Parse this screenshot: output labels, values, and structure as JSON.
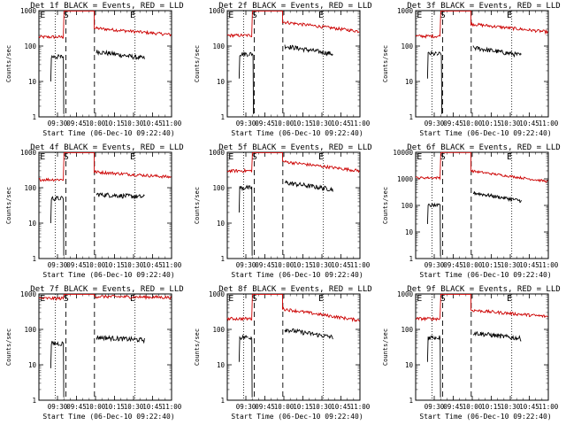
{
  "figure": {
    "description_colors": {
      "events": "#000000",
      "lld": "#cc0000"
    },
    "xlabel": "Start Time (06-Dec-10 09:22:40)",
    "ylabel": "Counts/sec"
  },
  "chart_data": [
    {
      "type": "line",
      "title": "Det 1f BLACK = Events, RED = LLD",
      "xlabel": "Start Time (06-Dec-10 09:22:40)",
      "ylabel": "Counts/sec",
      "y_scale": "log",
      "ylim": [
        1,
        1000
      ],
      "x_ticks": [
        "09:30",
        "09:45",
        "10:00",
        "10:15",
        "10:30",
        "10:45",
        "11:00"
      ],
      "x_range_minutes": [
        -7.33,
        97.33
      ],
      "markers": [
        "E",
        "S",
        "E"
      ],
      "event_lines": {
        "dotted": [
          5.5,
          68.5
        ],
        "dashed": [
          14.0,
          36.5
        ]
      },
      "series": [
        {
          "name": "LLD",
          "color": "#cc0000",
          "level_pre": 180,
          "level_flare": 1000,
          "level_post": 320,
          "post_end": 210
        },
        {
          "name": "Events",
          "color": "#000000",
          "level_pre": 50,
          "level_post": 70,
          "post_end": 45,
          "gap_end": 12
        }
      ]
    },
    {
      "type": "line",
      "title": "Det 2f BLACK = Events, RED = LLD",
      "xlabel": "Start Time (06-Dec-10 09:22:40)",
      "ylabel": "Counts/sec",
      "y_scale": "log",
      "ylim": [
        1,
        1000
      ],
      "x_ticks": [
        "09:30",
        "09:45",
        "10:00",
        "10:15",
        "10:30",
        "10:45",
        "11:00"
      ],
      "x_range_minutes": [
        -7.33,
        97.33
      ],
      "markers": [
        "E",
        "S",
        "E"
      ],
      "event_lines": {
        "dotted": [
          5.5,
          68.5
        ],
        "dashed": [
          14.0,
          36.5
        ]
      },
      "series": [
        {
          "name": "LLD",
          "color": "#cc0000",
          "level_pre": 200,
          "level_flare": 1000,
          "level_post": 480,
          "post_end": 260
        },
        {
          "name": "Events",
          "color": "#000000",
          "level_pre": 60,
          "level_post": 100,
          "post_end": 60,
          "gap_end": 13
        }
      ]
    },
    {
      "type": "line",
      "title": "Det 3f BLACK = Events, RED = LLD",
      "xlabel": "Start Time (06-Dec-10 09:22:40)",
      "ylabel": "Counts/sec",
      "y_scale": "log",
      "ylim": [
        1,
        1000
      ],
      "x_ticks": [
        "09:30",
        "09:45",
        "10:00",
        "10:15",
        "10:30",
        "10:45",
        "11:00"
      ],
      "x_range_minutes": [
        -7.33,
        97.33
      ],
      "markers": [
        "E",
        "S",
        "E"
      ],
      "event_lines": {
        "dotted": [
          5.5,
          68.5
        ],
        "dashed": [
          14.0,
          36.5
        ]
      },
      "series": [
        {
          "name": "LLD",
          "color": "#cc0000",
          "level_pre": 190,
          "level_flare": 1000,
          "level_post": 420,
          "post_end": 250
        },
        {
          "name": "Events",
          "color": "#000000",
          "level_pre": 60,
          "level_post": 90,
          "post_end": 55,
          "gap_end": 13
        }
      ]
    },
    {
      "type": "line",
      "title": "Det 4f BLACK = Events, RED = LLD",
      "xlabel": "Start Time (06-Dec-10 09:22:40)",
      "ylabel": "Counts/sec",
      "y_scale": "log",
      "ylim": [
        1,
        1000
      ],
      "x_ticks": [
        "09:30",
        "09:45",
        "10:00",
        "10:15",
        "10:30",
        "10:45",
        "11:00"
      ],
      "x_range_minutes": [
        -7.33,
        97.33
      ],
      "markers": [
        "E",
        "S",
        "E"
      ],
      "event_lines": {
        "dotted": [
          5.5,
          68.5
        ],
        "dashed": [
          14.0,
          36.5
        ]
      },
      "series": [
        {
          "name": "LLD",
          "color": "#cc0000",
          "level_pre": 170,
          "level_flare": 1000,
          "level_post": 280,
          "post_end": 200
        },
        {
          "name": "Events",
          "color": "#000000",
          "level_pre": 50,
          "level_post": 65,
          "post_end": 55,
          "gap_end": 12
        }
      ]
    },
    {
      "type": "line",
      "title": "Det 5f BLACK = Events, RED = LLD",
      "xlabel": "Start Time (06-Dec-10 09:22:40)",
      "ylabel": "Counts/sec",
      "y_scale": "log",
      "ylim": [
        1,
        1000
      ],
      "x_ticks": [
        "09:30",
        "09:45",
        "10:00",
        "10:15",
        "10:30",
        "10:45",
        "11:00"
      ],
      "x_range_minutes": [
        -7.33,
        97.33
      ],
      "markers": [
        "E",
        "S",
        "E"
      ],
      "event_lines": {
        "dotted": [
          5.5,
          68.5
        ],
        "dashed": [
          14.0,
          36.5
        ]
      },
      "series": [
        {
          "name": "LLD",
          "color": "#cc0000",
          "level_pre": 300,
          "level_flare": 1000,
          "level_post": 550,
          "post_end": 300
        },
        {
          "name": "Events",
          "color": "#000000",
          "level_pre": 100,
          "level_post": 140,
          "post_end": 90,
          "gap_end": 12
        }
      ]
    },
    {
      "type": "line",
      "title": "Det 6f BLACK = Events, RED = LLD",
      "xlabel": "Start Time (06-Dec-10 09:22:40)",
      "ylabel": "Counts/sec",
      "y_scale": "log",
      "ylim": [
        1,
        10000
      ],
      "x_ticks": [
        "09:30",
        "09:45",
        "10:00",
        "10:15",
        "10:30",
        "10:45",
        "11:00"
      ],
      "x_range_minutes": [
        -7.33,
        97.33
      ],
      "markers": [
        "E",
        "S",
        "E"
      ],
      "event_lines": {
        "dotted": [
          5.5,
          68.5
        ],
        "dashed": [
          14.0,
          36.5
        ]
      },
      "series": [
        {
          "name": "LLD",
          "color": "#cc0000",
          "level_pre": 1100,
          "level_flare": 10000,
          "level_post": 2000,
          "post_end": 800
        },
        {
          "name": "Events",
          "color": "#000000",
          "level_pre": 100,
          "level_post": 300,
          "post_end": 150,
          "gap_end": 12
        }
      ]
    },
    {
      "type": "line",
      "title": "Det 7f BLACK = Events, RED = LLD",
      "xlabel": "Start Time (06-Dec-10 09:22:40)",
      "ylabel": "Counts/sec",
      "y_scale": "log",
      "ylim": [
        1,
        1000
      ],
      "x_ticks": [
        "09:30",
        "09:45",
        "10:00",
        "10:15",
        "10:30",
        "10:45",
        "11:00"
      ],
      "x_range_minutes": [
        -7.33,
        97.33
      ],
      "markers": [
        "E",
        "S",
        "E"
      ],
      "event_lines": {
        "dotted": [
          5.5,
          68.5
        ],
        "dashed": [
          14.0,
          36.5
        ]
      },
      "series": [
        {
          "name": "LLD",
          "color": "#cc0000",
          "level_pre": 750,
          "level_flare": 1000,
          "level_post": 850,
          "post_end": 800
        },
        {
          "name": "Events",
          "color": "#000000",
          "level_pre": 40,
          "level_post": 60,
          "post_end": 50,
          "gap_end": 12
        }
      ]
    },
    {
      "type": "line",
      "title": "Det 8f BLACK = Events, RED = LLD",
      "xlabel": "Start Time (06-Dec-10 09:22:40)",
      "ylabel": "Counts/sec",
      "y_scale": "log",
      "ylim": [
        1,
        1000
      ],
      "x_ticks": [
        "09:30",
        "09:45",
        "10:00",
        "10:15",
        "10:30",
        "10:45",
        "11:00"
      ],
      "x_range_minutes": [
        -7.33,
        97.33
      ],
      "markers": [
        "E",
        "S",
        "E"
      ],
      "event_lines": {
        "dotted": [
          5.5,
          68.5
        ],
        "dashed": [
          14.0,
          36.5
        ]
      },
      "series": [
        {
          "name": "LLD",
          "color": "#cc0000",
          "level_pre": 200,
          "level_flare": 1000,
          "level_post": 380,
          "post_end": 180
        },
        {
          "name": "Events",
          "color": "#000000",
          "level_pre": 60,
          "level_post": 100,
          "post_end": 60,
          "gap_end": 12
        }
      ]
    },
    {
      "type": "line",
      "title": "Det 9f BLACK = Events, RED = LLD",
      "xlabel": "Start Time (06-Dec-10 09:22:40)",
      "ylabel": "Counts/sec",
      "y_scale": "log",
      "ylim": [
        1,
        1000
      ],
      "x_ticks": [
        "09:30",
        "09:45",
        "10:00",
        "10:15",
        "10:30",
        "10:45",
        "11:00"
      ],
      "x_range_minutes": [
        -7.33,
        97.33
      ],
      "markers": [
        "E",
        "S",
        "E"
      ],
      "event_lines": {
        "dotted": [
          5.5,
          68.5
        ],
        "dashed": [
          14.0,
          36.5
        ]
      },
      "series": [
        {
          "name": "LLD",
          "color": "#cc0000",
          "level_pre": 200,
          "level_flare": 1000,
          "level_post": 350,
          "post_end": 230
        },
        {
          "name": "Events",
          "color": "#000000",
          "level_pre": 60,
          "level_post": 80,
          "post_end": 55,
          "gap_end": 12
        }
      ]
    }
  ]
}
